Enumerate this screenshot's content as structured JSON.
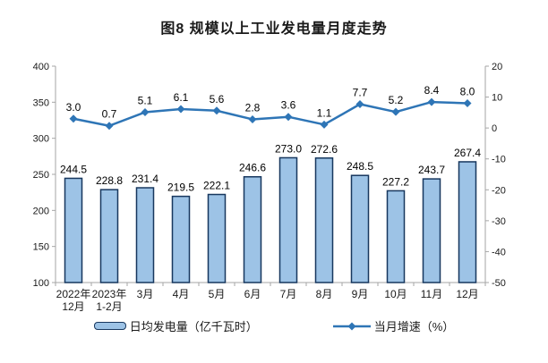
{
  "title": "图8  规模以上工业发电量月度走势",
  "legend": {
    "bar_label": "日均发电量（亿千瓦时）",
    "line_label": "当月增速（%）"
  },
  "chart_data": {
    "type": "bar",
    "title": "图8 规模以上工业发电量月度走势",
    "categories": [
      "2022年12月",
      "2023年1-2月",
      "3月",
      "4月",
      "5月",
      "6月",
      "7月",
      "8月",
      "9月",
      "10月",
      "11月",
      "12月"
    ],
    "category_lines": [
      [
        "2022年",
        "12月"
      ],
      [
        "2023年",
        "1-2月"
      ],
      [
        "3月"
      ],
      [
        "4月"
      ],
      [
        "5月"
      ],
      [
        "6月"
      ],
      [
        "7月"
      ],
      [
        "8月"
      ],
      [
        "9月"
      ],
      [
        "10月"
      ],
      [
        "11月"
      ],
      [
        "12月"
      ]
    ],
    "series": [
      {
        "name": "日均发电量（亿千瓦时）",
        "type": "bar",
        "axis": "left",
        "values": [
          244.5,
          228.8,
          231.4,
          219.5,
          222.1,
          246.6,
          273.0,
          272.6,
          248.5,
          227.2,
          243.7,
          267.4
        ]
      },
      {
        "name": "当月增速（%）",
        "type": "line",
        "axis": "right",
        "values": [
          3.0,
          0.7,
          5.1,
          6.1,
          5.6,
          2.8,
          3.6,
          1.1,
          7.7,
          5.2,
          8.4,
          8.0
        ]
      }
    ],
    "left_axis": {
      "min": 100,
      "max": 400,
      "ticks": [
        400,
        350,
        300,
        250,
        200,
        150,
        100
      ]
    },
    "right_axis": {
      "min": -50,
      "max": 20,
      "ticks": [
        20,
        10,
        0,
        -10,
        -20,
        -30,
        -40,
        -50
      ]
    },
    "grid": false,
    "legend_position": "bottom",
    "colors": {
      "bar_fill": "#9DC3E6",
      "bar_border": "#17375E",
      "line": "#2E75B6",
      "label": "#000000",
      "tick_label": "#1a1a1a",
      "axis_line": "#A6A6A6"
    }
  }
}
